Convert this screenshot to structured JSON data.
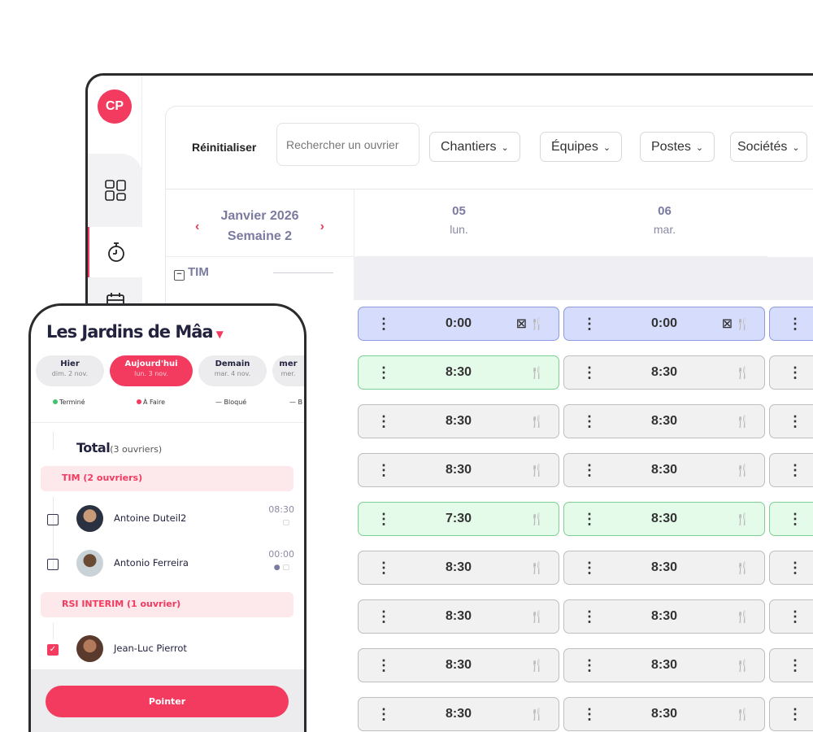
{
  "sidebar": {
    "avatar_initials": "CP",
    "items": [
      {
        "icon": "dashboard-icon"
      },
      {
        "icon": "stopwatch-icon",
        "active": true
      },
      {
        "icon": "calendar-icon"
      }
    ]
  },
  "toolbar": {
    "reset_label": "Réinitialiser",
    "search_placeholder": "Rechercher un ouvrier",
    "filters": [
      "Chantiers",
      "Équipes",
      "Postes",
      "Sociétés"
    ]
  },
  "calendar": {
    "month": "Janvier 2026",
    "week": "Semaine 2",
    "days": [
      {
        "num": "05",
        "name": "lun."
      },
      {
        "num": "06",
        "name": "mar."
      }
    ],
    "group": "TIM",
    "rows": [
      {
        "cells": [
          {
            "value": "0:00",
            "status": "blue",
            "absence": true
          },
          {
            "value": "0:00",
            "status": "blue",
            "absence": true
          },
          {
            "status": "blue"
          }
        ]
      },
      {
        "cells": [
          {
            "value": "8:30",
            "status": "green"
          },
          {
            "value": "8:30",
            "status": "grey"
          },
          {
            "status": "grey"
          }
        ]
      },
      {
        "cells": [
          {
            "value": "8:30",
            "status": "grey"
          },
          {
            "value": "8:30",
            "status": "grey"
          },
          {
            "status": "grey"
          }
        ]
      },
      {
        "cells": [
          {
            "value": "8:30",
            "status": "grey"
          },
          {
            "value": "8:30",
            "status": "grey"
          },
          {
            "status": "grey"
          }
        ]
      },
      {
        "cells": [
          {
            "value": "7:30",
            "status": "green"
          },
          {
            "value": "8:30",
            "status": "green"
          },
          {
            "status": "green"
          }
        ]
      },
      {
        "cells": [
          {
            "value": "8:30",
            "status": "grey"
          },
          {
            "value": "8:30",
            "status": "grey"
          },
          {
            "status": "grey"
          }
        ]
      },
      {
        "cells": [
          {
            "value": "8:30",
            "status": "grey"
          },
          {
            "value": "8:30",
            "status": "grey"
          },
          {
            "status": "grey"
          }
        ]
      },
      {
        "cells": [
          {
            "value": "8:30",
            "status": "grey"
          },
          {
            "value": "8:30",
            "status": "grey"
          },
          {
            "status": "grey"
          }
        ]
      },
      {
        "cells": [
          {
            "value": "8:30",
            "status": "grey"
          },
          {
            "value": "8:30",
            "status": "grey"
          },
          {
            "status": "grey"
          }
        ]
      }
    ]
  },
  "phone": {
    "title": "Les Jardins de Mâa",
    "days": [
      {
        "label": "Hier",
        "date": "dim. 2 nov."
      },
      {
        "label": "Aujourd'hui",
        "date": "lun. 3 nov.",
        "active": true
      },
      {
        "label": "Demain",
        "date": "mar. 4 nov."
      },
      {
        "label": "mer",
        "date": "mer."
      }
    ],
    "legend": [
      {
        "label": "Terminé",
        "color": "#3ec46d"
      },
      {
        "label": "À Faire",
        "color": "#f23b5f"
      },
      {
        "label": "Bloqué"
      },
      {
        "label": "B"
      }
    ],
    "total_label": "Total",
    "total_count": "(3 ouvriers)",
    "sections": [
      {
        "title": "TIM (2 ouvriers)",
        "workers": [
          {
            "name": "Antoine Duteil2",
            "time": "08:30",
            "checked": false
          },
          {
            "name": "Antonio Ferreira",
            "time": "00:00",
            "checked": false
          }
        ]
      },
      {
        "title": "RSI INTERIM (1 ouvrier)",
        "workers": [
          {
            "name": "Jean-Luc Pierrot",
            "time": "",
            "checked": true
          }
        ]
      }
    ],
    "button": "Pointer"
  },
  "colors": {
    "accent": "#f23b5f",
    "blue": "#d6dcfb",
    "green": "#e5fbea"
  }
}
